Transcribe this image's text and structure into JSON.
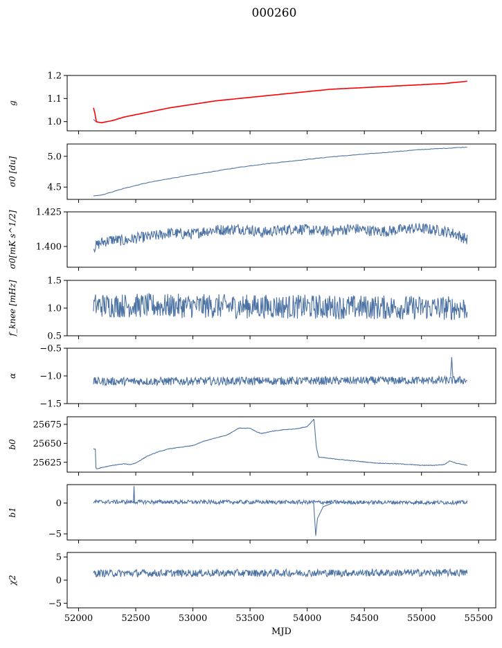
{
  "title": "000260",
  "series_color": "#4c72a4",
  "fit_color": "#ff0000",
  "chart_data": [
    {
      "type": "line",
      "ylabel": "g",
      "ylim": [
        0.96,
        1.2
      ],
      "yticks": [
        1.0,
        1.1,
        1.2
      ],
      "ytick_labels": [
        "1.0",
        "1.1",
        "1.2"
      ],
      "xlim": [
        51900,
        55650
      ],
      "xticks": [
        52000,
        52500,
        53000,
        53500,
        54000,
        54500,
        55000,
        55500
      ],
      "xtick_labels": [],
      "series": [
        {
          "kind": "main",
          "x": [
            52130,
            52150,
            52200,
            52300,
            52400,
            52600,
            52800,
            53000,
            53200,
            53400,
            53600,
            53800,
            54000,
            54200,
            54400,
            54600,
            54800,
            55000,
            55200,
            55400
          ],
          "values": [
            1.01,
            1.0,
            0.995,
            1.005,
            1.02,
            1.04,
            1.06,
            1.075,
            1.09,
            1.1,
            1.11,
            1.12,
            1.13,
            1.14,
            1.145,
            1.15,
            1.155,
            1.16,
            1.165,
            1.175
          ]
        },
        {
          "kind": "fit",
          "x": [
            52130,
            52135,
            52140,
            52150,
            52200,
            52300,
            52400,
            52600,
            52800,
            53000,
            53200,
            53400,
            53600,
            53800,
            54000,
            54200,
            54400,
            54600,
            54800,
            55000,
            55200,
            55400
          ],
          "values": [
            1.06,
            1.01,
            1.05,
            1.0,
            0.995,
            1.005,
            1.02,
            1.04,
            1.06,
            1.075,
            1.09,
            1.1,
            1.11,
            1.12,
            1.13,
            1.14,
            1.145,
            1.15,
            1.155,
            1.16,
            1.165,
            1.175
          ]
        }
      ]
    },
    {
      "type": "line",
      "ylabel": "σ0 [du]",
      "ylim": [
        4.3,
        5.2
      ],
      "yticks": [
        4.5,
        5.0
      ],
      "ytick_labels": [
        "4.5",
        "5.0"
      ],
      "xlim": [
        51900,
        55650
      ],
      "xticks": [
        52000,
        52500,
        53000,
        53500,
        54000,
        54500,
        55000,
        55500
      ],
      "xtick_labels": [],
      "series": [
        {
          "kind": "main",
          "x": [
            52130,
            52200,
            52400,
            52600,
            52800,
            53000,
            53200,
            53400,
            53600,
            53800,
            54000,
            54200,
            54400,
            54600,
            54800,
            55000,
            55200,
            55400
          ],
          "values": [
            4.36,
            4.37,
            4.48,
            4.57,
            4.64,
            4.7,
            4.76,
            4.82,
            4.87,
            4.91,
            4.95,
            4.99,
            5.02,
            5.05,
            5.08,
            5.11,
            5.13,
            5.15
          ]
        }
      ]
    },
    {
      "type": "line",
      "ylabel": "σ0[mK s^1/2]",
      "ylim": [
        1.385,
        1.425
      ],
      "yticks": [
        1.4,
        1.425
      ],
      "ytick_labels": [
        "1.400",
        "1.425"
      ],
      "xlim": [
        51900,
        55650
      ],
      "xticks": [
        52000,
        52500,
        53000,
        53500,
        54000,
        54500,
        55000,
        55500
      ],
      "xtick_labels": [],
      "series": [
        {
          "kind": "main",
          "x": [
            52130,
            52200,
            52300,
            52400,
            52500,
            52600,
            52700,
            52800,
            52900,
            53000,
            53100,
            53200,
            53300,
            53400,
            53500,
            53600,
            53700,
            53800,
            53900,
            54000,
            54100,
            54200,
            54300,
            54400,
            54500,
            54600,
            54700,
            54800,
            54900,
            55000,
            55100,
            55200,
            55300,
            55400
          ],
          "values": [
            1.399,
            1.403,
            1.405,
            1.404,
            1.406,
            1.407,
            1.408,
            1.41,
            1.409,
            1.409,
            1.411,
            1.412,
            1.412,
            1.413,
            1.412,
            1.41,
            1.411,
            1.412,
            1.413,
            1.412,
            1.411,
            1.411,
            1.412,
            1.413,
            1.412,
            1.411,
            1.411,
            1.412,
            1.413,
            1.413,
            1.412,
            1.411,
            1.409,
            1.405
          ]
        }
      ]
    },
    {
      "type": "line",
      "ylabel": "f_knee [mHz]",
      "ylim": [
        0.5,
        1.5
      ],
      "yticks": [
        0.5,
        1.0,
        1.5
      ],
      "ytick_labels": [
        "0.5",
        "1.0",
        "1.5"
      ],
      "xlim": [
        51900,
        55650
      ],
      "xticks": [
        52000,
        52500,
        53000,
        53500,
        54000,
        54500,
        55000,
        55500
      ],
      "xtick_labels": [],
      "series": [
        {
          "kind": "main",
          "x": [
            52130,
            55400
          ],
          "values": [
            1.05,
            1.0
          ]
        }
      ]
    },
    {
      "type": "line",
      "ylabel": "α",
      "ylim": [
        -1.5,
        -0.5
      ],
      "yticks": [
        -1.5,
        -1.0,
        -0.5
      ],
      "ytick_labels": [
        "−1.5",
        "−1.0",
        "−0.5"
      ],
      "xlim": [
        51900,
        55650
      ],
      "xticks": [
        52000,
        52500,
        53000,
        53500,
        54000,
        54500,
        55000,
        55500
      ],
      "xtick_labels": [],
      "series": [
        {
          "kind": "main",
          "x": [
            52130,
            55400
          ],
          "values": [
            -1.1,
            -1.08
          ]
        }
      ]
    },
    {
      "type": "line",
      "ylabel": "b0",
      "ylim": [
        25612,
        25685
      ],
      "yticks": [
        25625,
        25650,
        25675
      ],
      "ytick_labels": [
        "25625",
        "25650",
        "25675"
      ],
      "xlim": [
        51900,
        55650
      ],
      "xticks": [
        52000,
        52500,
        53000,
        53500,
        54000,
        54500,
        55000,
        55500
      ],
      "xtick_labels": [],
      "series": [
        {
          "kind": "main",
          "x": [
            52130,
            52148,
            52152,
            52200,
            52300,
            52400,
            52450,
            52500,
            52600,
            52700,
            52800,
            52900,
            53000,
            53100,
            53200,
            53300,
            53400,
            53500,
            53560,
            53600,
            53700,
            53800,
            53900,
            54000,
            54060,
            54080,
            54100,
            54200,
            54400,
            54600,
            54800,
            55000,
            55100,
            55200,
            55250,
            55300,
            55400
          ],
          "values": [
            25643,
            25642,
            25616,
            25618,
            25621,
            25623,
            25622,
            25624,
            25633,
            25639,
            25643,
            25645,
            25647,
            25653,
            25657,
            25661,
            25670,
            25670,
            25665,
            25663,
            25666,
            25668,
            25669,
            25672,
            25682,
            25645,
            25632,
            25630,
            25627,
            25624,
            25623,
            25621,
            25621,
            25622,
            25627,
            25624,
            25621
          ]
        }
      ]
    },
    {
      "type": "line",
      "ylabel": "b1",
      "ylim": [
        -6,
        3
      ],
      "yticks": [
        -5,
        0
      ],
      "ytick_labels": [
        "−5",
        "0"
      ],
      "xlim": [
        51900,
        55650
      ],
      "xticks": [
        52000,
        52500,
        53000,
        53500,
        54000,
        54500,
        55000,
        55500
      ],
      "xtick_labels": [],
      "series": [
        {
          "kind": "main",
          "x": [
            52130,
            55400
          ],
          "values": [
            0.2,
            0.1
          ]
        }
      ]
    },
    {
      "type": "line",
      "ylabel": "χ2",
      "ylim": [
        -6,
        6
      ],
      "yticks": [
        -5,
        0,
        5
      ],
      "ytick_labels": [
        "−5",
        "0",
        "5"
      ],
      "xlim": [
        51900,
        55650
      ],
      "xticks": [
        52000,
        52500,
        53000,
        53500,
        54000,
        54500,
        55000,
        55500
      ],
      "xtick_labels": [
        "52000",
        "52500",
        "53000",
        "53500",
        "54000",
        "54500",
        "55000",
        "55500"
      ],
      "xlabel": "MJD",
      "series": [
        {
          "kind": "main",
          "x": [
            52130,
            55400
          ],
          "values": [
            1.5,
            1.6
          ]
        }
      ]
    }
  ]
}
